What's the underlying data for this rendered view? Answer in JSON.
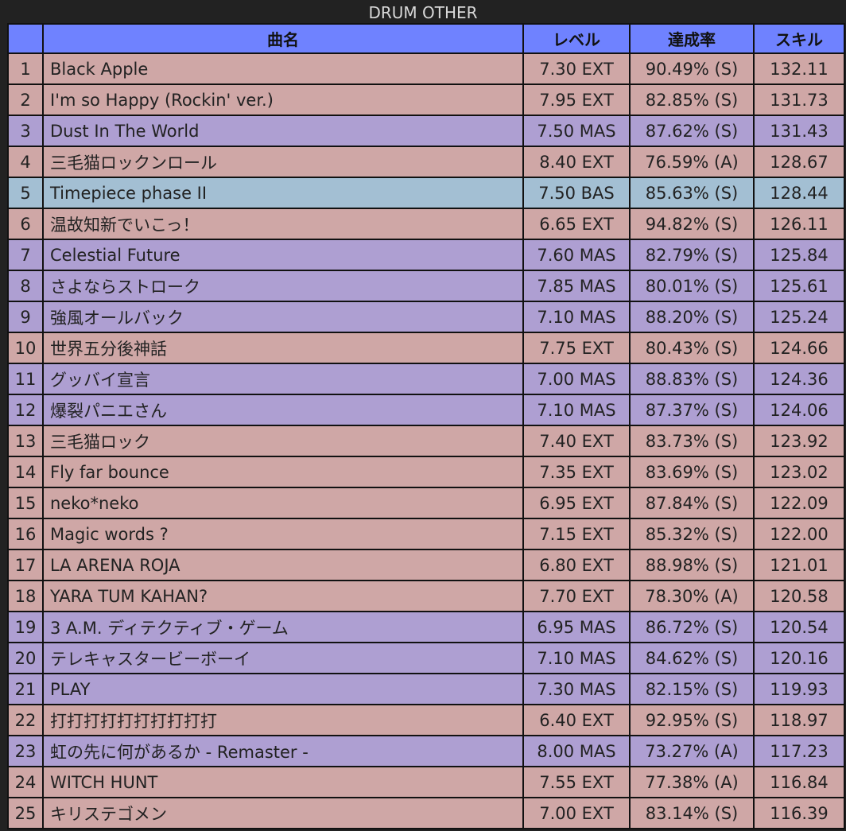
{
  "title": "DRUM OTHER",
  "headers": {
    "num": "",
    "name": "曲名",
    "level": "レベル",
    "rate": "達成率",
    "skill": "スキル"
  },
  "colors": {
    "EXT": "#cfa7a6",
    "MAS": "#ae9fd2",
    "BAS": "#a3bfd3",
    "header": "#6f82ff",
    "background": "#222222"
  },
  "rows": [
    {
      "num": "1",
      "name": "Black Apple",
      "level": "7.30 EXT",
      "diff": "EXT",
      "rate": "90.49% (S)",
      "skill": "132.11"
    },
    {
      "num": "2",
      "name": "I'm so Happy (Rockin' ver.)",
      "level": "7.95 EXT",
      "diff": "EXT",
      "rate": "82.85% (S)",
      "skill": "131.73"
    },
    {
      "num": "3",
      "name": "Dust In The World",
      "level": "7.50 MAS",
      "diff": "MAS",
      "rate": "87.62% (S)",
      "skill": "131.43"
    },
    {
      "num": "4",
      "name": "三毛猫ロックンロール",
      "level": "8.40 EXT",
      "diff": "EXT",
      "rate": "76.59% (A)",
      "skill": "128.67"
    },
    {
      "num": "5",
      "name": "Timepiece phase II",
      "level": "7.50 BAS",
      "diff": "BAS",
      "rate": "85.63% (S)",
      "skill": "128.44"
    },
    {
      "num": "6",
      "name": "温故知新でいこっ！",
      "level": "6.65 EXT",
      "diff": "EXT",
      "rate": "94.82% (S)",
      "skill": "126.11"
    },
    {
      "num": "7",
      "name": "Celestial Future",
      "level": "7.60 MAS",
      "diff": "MAS",
      "rate": "82.79% (S)",
      "skill": "125.84"
    },
    {
      "num": "8",
      "name": "さよならストローク",
      "level": "7.85 MAS",
      "diff": "MAS",
      "rate": "80.01% (S)",
      "skill": "125.61"
    },
    {
      "num": "9",
      "name": "強風オールバック",
      "level": "7.10 MAS",
      "diff": "MAS",
      "rate": "88.20% (S)",
      "skill": "125.24"
    },
    {
      "num": "10",
      "name": "世界五分後神話",
      "level": "7.75 EXT",
      "diff": "EXT",
      "rate": "80.43% (S)",
      "skill": "124.66"
    },
    {
      "num": "11",
      "name": "グッバイ宣言",
      "level": "7.00 MAS",
      "diff": "MAS",
      "rate": "88.83% (S)",
      "skill": "124.36"
    },
    {
      "num": "12",
      "name": "爆裂パニエさん",
      "level": "7.10 MAS",
      "diff": "MAS",
      "rate": "87.37% (S)",
      "skill": "124.06"
    },
    {
      "num": "13",
      "name": "三毛猫ロック",
      "level": "7.40 EXT",
      "diff": "EXT",
      "rate": "83.73% (S)",
      "skill": "123.92"
    },
    {
      "num": "14",
      "name": "Fly far bounce",
      "level": "7.35 EXT",
      "diff": "EXT",
      "rate": "83.69% (S)",
      "skill": "123.02"
    },
    {
      "num": "15",
      "name": "neko*neko",
      "level": "6.95 EXT",
      "diff": "EXT",
      "rate": "87.84% (S)",
      "skill": "122.09"
    },
    {
      "num": "16",
      "name": "Magic words ?",
      "level": "7.15 EXT",
      "diff": "EXT",
      "rate": "85.32% (S)",
      "skill": "122.00"
    },
    {
      "num": "17",
      "name": "LA ARENA ROJA",
      "level": "6.80 EXT",
      "diff": "EXT",
      "rate": "88.98% (S)",
      "skill": "121.01"
    },
    {
      "num": "18",
      "name": "YARA TUM KAHAN?",
      "level": "7.70 EXT",
      "diff": "EXT",
      "rate": "78.30% (A)",
      "skill": "120.58"
    },
    {
      "num": "19",
      "name": "3 A.M. ディテクティブ・ゲーム",
      "level": "6.95 MAS",
      "diff": "MAS",
      "rate": "86.72% (S)",
      "skill": "120.54"
    },
    {
      "num": "20",
      "name": "テレキャスタービーボーイ",
      "level": "7.10 MAS",
      "diff": "MAS",
      "rate": "84.62% (S)",
      "skill": "120.16"
    },
    {
      "num": "21",
      "name": "PLAY",
      "level": "7.30 MAS",
      "diff": "MAS",
      "rate": "82.15% (S)",
      "skill": "119.93"
    },
    {
      "num": "22",
      "name": "打打打打打打打打打打",
      "level": "6.40 EXT",
      "diff": "EXT",
      "rate": "92.95% (S)",
      "skill": "118.97"
    },
    {
      "num": "23",
      "name": "虹の先に何があるか - Remaster -",
      "level": "8.00 MAS",
      "diff": "MAS",
      "rate": "73.27% (A)",
      "skill": "117.23"
    },
    {
      "num": "24",
      "name": "WITCH HUNT",
      "level": "7.55 EXT",
      "diff": "EXT",
      "rate": "77.38% (A)",
      "skill": "116.84"
    },
    {
      "num": "25",
      "name": "キリステゴメン",
      "level": "7.00 EXT",
      "diff": "EXT",
      "rate": "83.14% (S)",
      "skill": "116.39"
    }
  ]
}
